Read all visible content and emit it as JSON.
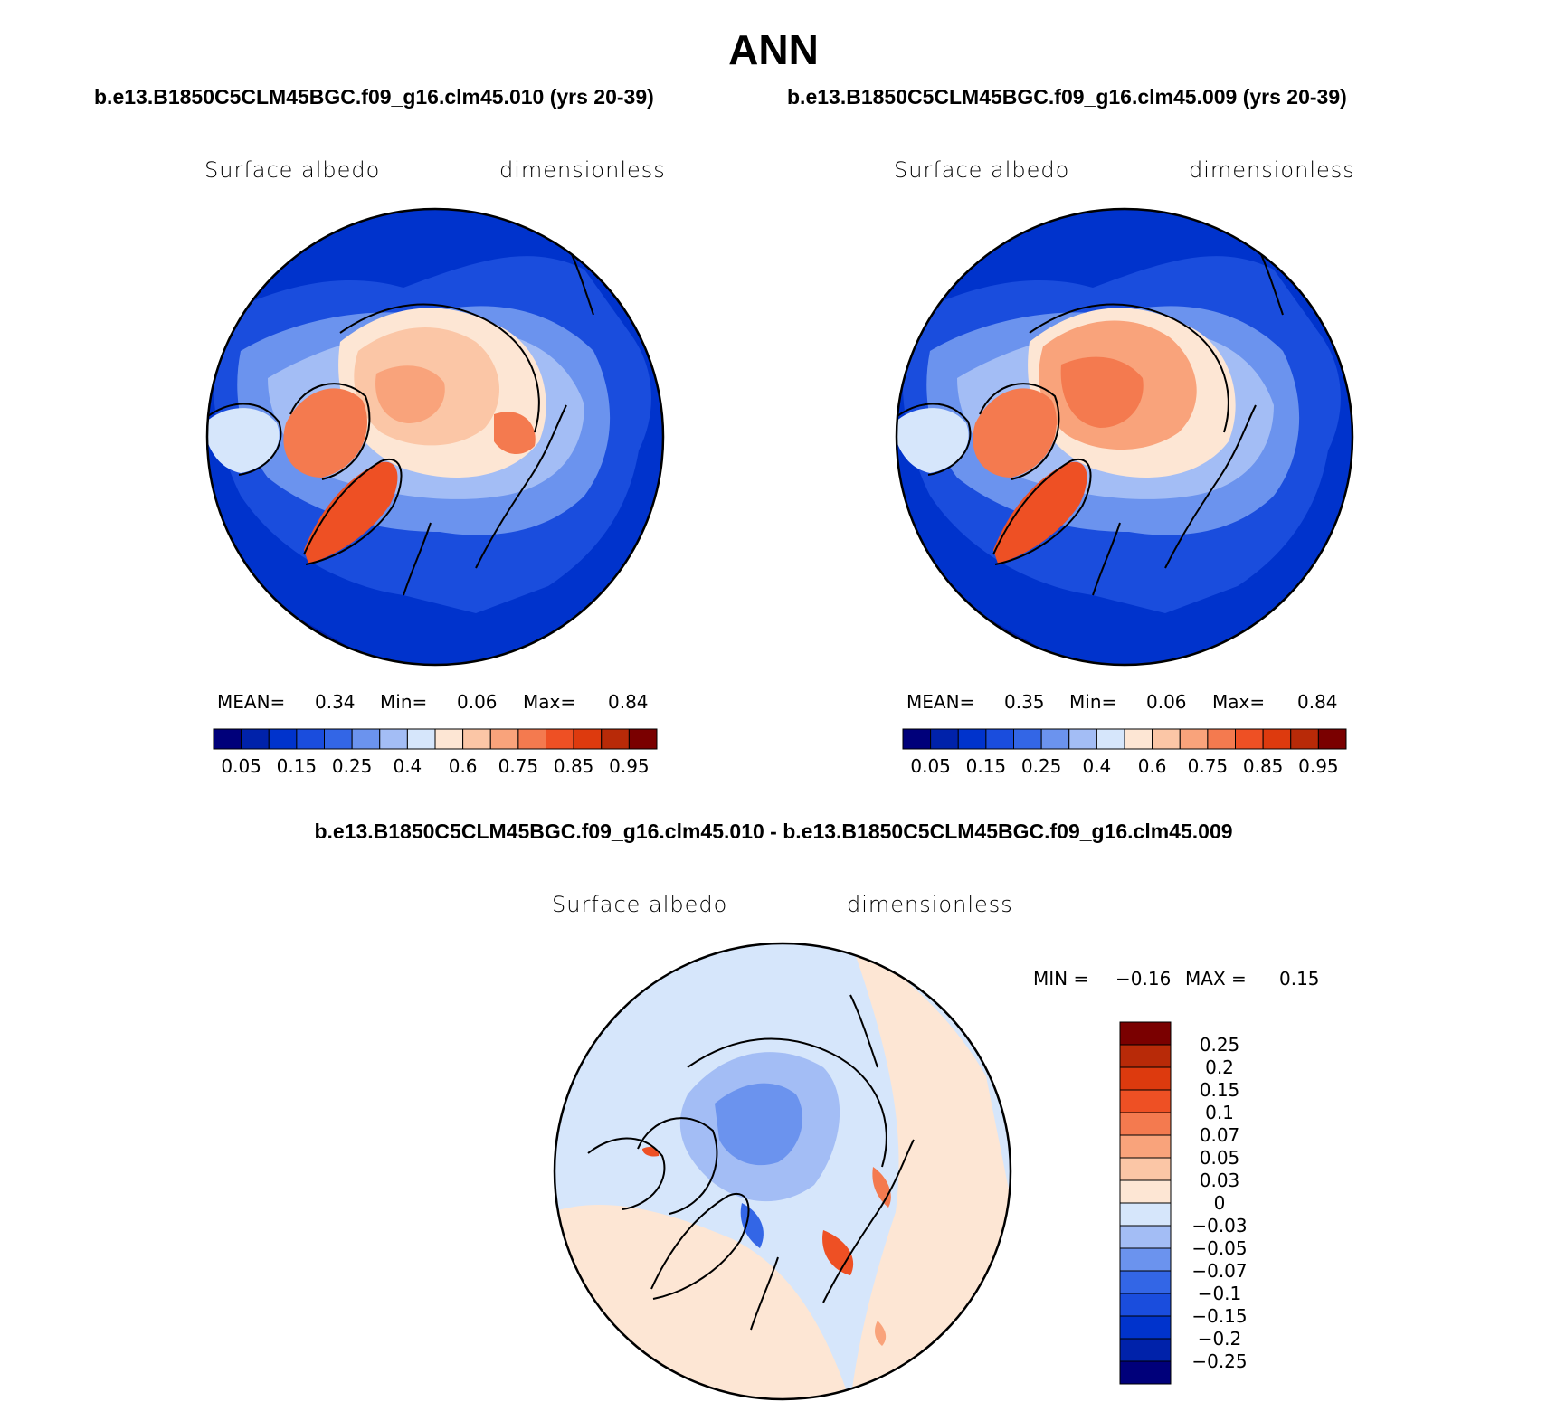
{
  "title": "ANN",
  "case_title_left": "b.e13.B1850C5CLM45BGC.f09_g16.clm45.010 (yrs 20-39)",
  "case_title_right": "b.e13.B1850C5CLM45BGC.f09_g16.clm45.009 (yrs 20-39)",
  "diff_title": "b.e13.B1850C5CLM45BGC.f09_g16.clm45.010 - b.e13.B1850C5CLM45BGC.f09_g16.clm45.009",
  "panels": {
    "left": {
      "variable": "Surface albedo",
      "units": "dimensionless",
      "mean_label": "MEAN=",
      "mean_value": "0.34",
      "min_label": "Min=",
      "min_value": "0.06",
      "max_label": "Max=",
      "max_value": "0.84"
    },
    "right": {
      "variable": "Surface albedo",
      "units": "dimensionless",
      "mean_label": "MEAN=",
      "mean_value": "0.35",
      "min_label": "Min=",
      "min_value": "0.06",
      "max_label": "Max=",
      "max_value": "0.84"
    },
    "diff": {
      "variable": "Surface albedo",
      "units": "dimensionless",
      "min_label": "MIN =",
      "min_value": "−0.16",
      "max_label": "MAX =",
      "max_value": "0.15"
    }
  },
  "abs_colorbar": {
    "colors": [
      "#00007a",
      "#0022aa",
      "#0033cc",
      "#1a4ddd",
      "#3366e6",
      "#6b93ee",
      "#a3bdf5",
      "#d6e6fb",
      "#fde6d4",
      "#fbc6a6",
      "#f9a37b",
      "#f47a4f",
      "#ee5024",
      "#dd3a0e",
      "#b82a08",
      "#7a0000"
    ],
    "tick_labels": [
      "0.05",
      "0.15",
      "0.25",
      "0.4",
      "0.6",
      "0.75",
      "0.85",
      "0.95"
    ]
  },
  "diff_colorbar": {
    "colors": [
      "#7a0000",
      "#b82a08",
      "#dd3a0e",
      "#ee5024",
      "#f47a4f",
      "#f9a37b",
      "#fbc6a6",
      "#fde6d4",
      "#d6e6fb",
      "#a3bdf5",
      "#6b93ee",
      "#3366e6",
      "#1a4ddd",
      "#0033cc",
      "#0022aa",
      "#00007a"
    ],
    "tick_labels": [
      "0.25",
      "0.2",
      "0.15",
      "0.1",
      "0.07",
      "0.05",
      "0.03",
      "0",
      "−0.03",
      "−0.05",
      "−0.07",
      "−0.1",
      "−0.15",
      "−0.2",
      "−0.25"
    ]
  }
}
